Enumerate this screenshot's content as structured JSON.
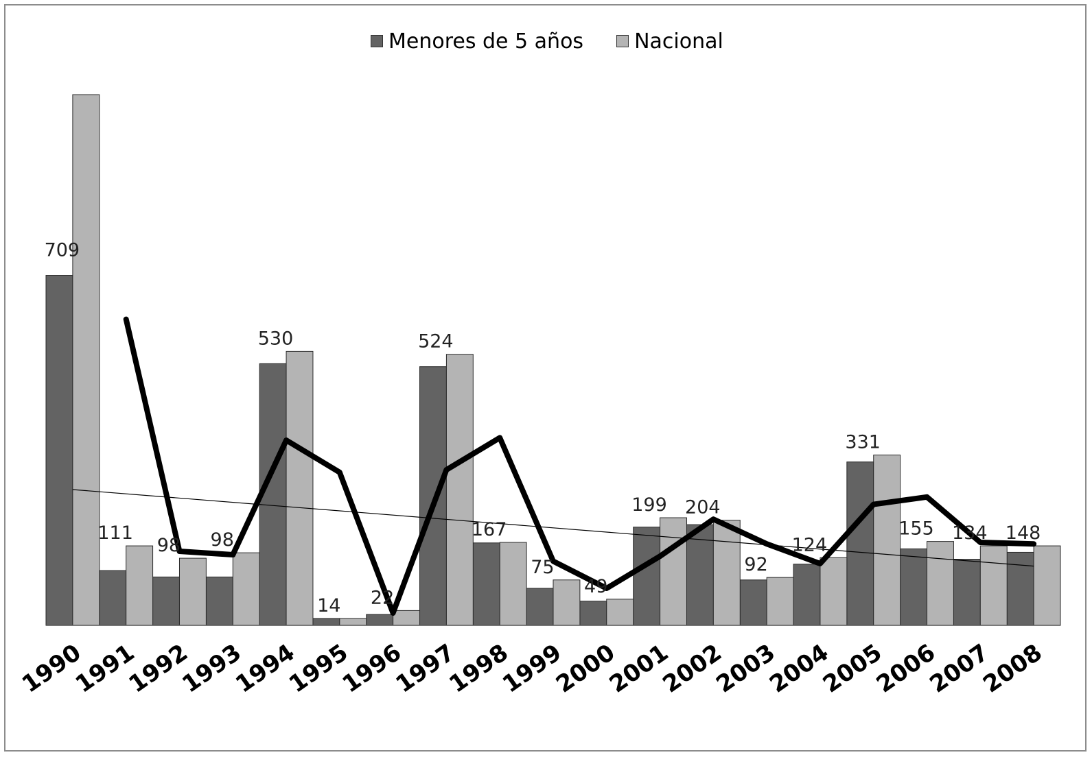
{
  "chart_data": {
    "type": "bar",
    "title": "",
    "xlabel": "",
    "ylabel": "",
    "ylim": [
      0,
      1100
    ],
    "grid": false,
    "legend_position": "top",
    "categories": [
      "1990",
      "1991",
      "1992",
      "1993",
      "1994",
      "1995",
      "1996",
      "1997",
      "1998",
      "1999",
      "2000",
      "2001",
      "2002",
      "2003",
      "2004",
      "2005",
      "2006",
      "2007",
      "2008"
    ],
    "series": [
      {
        "name": "Menores de 5 años",
        "color": "#636363",
        "values": [
          709,
          111,
          98,
          98,
          530,
          14,
          22,
          524,
          167,
          75,
          49,
          199,
          204,
          92,
          124,
          331,
          155,
          134,
          148
        ],
        "data_labels": [
          "709",
          "111",
          "98",
          "98",
          "530",
          "14",
          "22",
          "524",
          "167",
          "75",
          "49",
          "199",
          "204",
          "92",
          "124",
          "331",
          "155",
          "134",
          "148"
        ]
      },
      {
        "name": "Nacional",
        "color": "#b4b4b4",
        "values": [
          1075,
          161,
          136,
          147,
          555,
          14,
          30,
          549,
          168,
          92,
          53,
          218,
          213,
          97,
          137,
          345,
          170,
          161,
          161
        ]
      }
    ],
    "line_series": {
      "color": "#000000",
      "x": [
        "1991",
        "1992",
        "1993",
        "1994",
        "1995",
        "1996",
        "1997",
        "1998",
        "1999",
        "2000",
        "2001",
        "2002",
        "2003",
        "2004",
        "2005",
        "2006",
        "2007",
        "2008"
      ],
      "values": [
        620,
        150,
        143,
        375,
        310,
        25,
        315,
        380,
        130,
        75,
        140,
        215,
        165,
        125,
        245,
        260,
        168,
        165
      ]
    },
    "trendline": {
      "color": "#000000",
      "start": 275,
      "end": 120
    }
  }
}
